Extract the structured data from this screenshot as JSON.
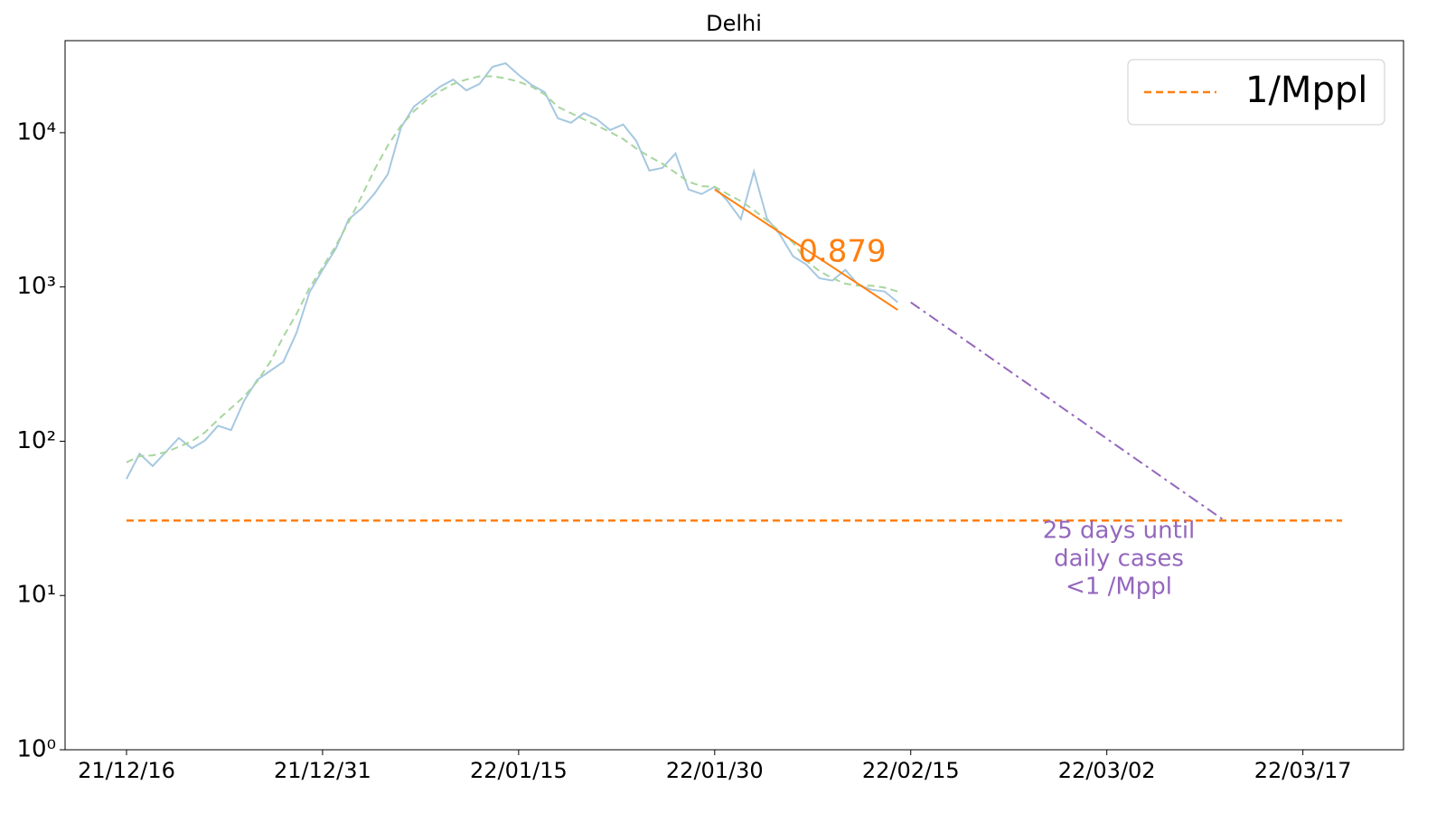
{
  "chart_data": {
    "type": "line",
    "title": "Delhi",
    "log_y": true,
    "xlim": [
      -4.7,
      97.7
    ],
    "ylim": [
      1,
      39500
    ],
    "xticks": [
      {
        "value": 0,
        "label": "21/12/16"
      },
      {
        "value": 15,
        "label": "21/12/31"
      },
      {
        "value": 30,
        "label": "22/01/15"
      },
      {
        "value": 45,
        "label": "22/01/30"
      },
      {
        "value": 60,
        "label": "22/02/15"
      },
      {
        "value": 75,
        "label": "22/03/02"
      },
      {
        "value": 90,
        "label": "22/03/17"
      }
    ],
    "yticks": [
      {
        "value": 1,
        "label": "10⁰"
      },
      {
        "value": 10,
        "label": "10¹"
      },
      {
        "value": 100,
        "label": "10²"
      },
      {
        "value": 1000,
        "label": "10³"
      },
      {
        "value": 10000,
        "label": "10⁴"
      }
    ],
    "legend": "upper right",
    "series": [
      {
        "color": "#a6c8e0",
        "style": "solid",
        "width": 2,
        "x": [
          0,
          1,
          2,
          3,
          4,
          5,
          6,
          7,
          8,
          9,
          10,
          11,
          12,
          13,
          14,
          15,
          16,
          17,
          18,
          19,
          20,
          21,
          22,
          23,
          24,
          25,
          26,
          27,
          28,
          29,
          30,
          31,
          32,
          33,
          34,
          35,
          36,
          37,
          38,
          39,
          40,
          41,
          42,
          43,
          44,
          45,
          46,
          47,
          48,
          49,
          50,
          51,
          52,
          53,
          54,
          55,
          56,
          57,
          58,
          59
        ],
        "values": [
          57,
          83,
          69,
          85,
          105,
          90,
          101,
          126,
          118,
          183,
          250,
          286,
          327,
          503,
          923,
          1290,
          1762,
          2750,
          3230,
          4060,
          5390,
          10800,
          14800,
          17100,
          19900,
          22100,
          18800,
          20700,
          26700,
          28200,
          23700,
          20400,
          18300,
          12400,
          11600,
          13400,
          12200,
          10400,
          11300,
          8850,
          5680,
          5910,
          7330,
          4280,
          4000,
          4460,
          3590,
          2750,
          5600,
          2780,
          2180,
          1580,
          1400,
          1140,
          1100,
          1290,
          1030,
          960,
          935,
          795
        ]
      },
      {
        "color": "#a8d5a0",
        "style": "dashed",
        "width": 2,
        "x": [
          0,
          1,
          2,
          3,
          4,
          5,
          6,
          7,
          8,
          9,
          10,
          11,
          12,
          13,
          14,
          15,
          16,
          17,
          18,
          19,
          20,
          21,
          22,
          23,
          24,
          25,
          26,
          27,
          28,
          29,
          30,
          31,
          32,
          33,
          34,
          35,
          36,
          37,
          38,
          39,
          40,
          41,
          42,
          43,
          44,
          45,
          46,
          47,
          48,
          49,
          50,
          51,
          52,
          53,
          54,
          55,
          56,
          57,
          58,
          59
        ],
        "values": [
          73,
          80,
          81,
          85,
          92,
          100,
          114,
          138,
          164,
          195,
          244,
          327,
          476,
          667,
          985,
          1340,
          1840,
          2640,
          3890,
          5810,
          8280,
          11100,
          13800,
          16400,
          18600,
          20700,
          22100,
          23200,
          23200,
          22500,
          21400,
          19900,
          17700,
          14700,
          13400,
          12200,
          11100,
          10100,
          9100,
          7900,
          7000,
          6300,
          5500,
          4800,
          4500,
          4460,
          4000,
          3600,
          3150,
          2700,
          2280,
          1940,
          1480,
          1270,
          1140,
          1050,
          1020,
          1020,
          990,
          935
        ]
      },
      {
        "color": "#ff7f0e",
        "style": "solid",
        "width": 2,
        "x": [
          45,
          59
        ],
        "values": [
          4280,
          710
        ]
      },
      {
        "color": "#9467bd",
        "style": "dashdot",
        "width": 2,
        "x": [
          60,
          84
        ],
        "values": [
          795,
          30.6
        ]
      },
      {
        "name": "1/Mppl",
        "color": "#ff7f0e",
        "style": "dashed",
        "width": 2.5,
        "x": [
          0,
          93
        ],
        "values": [
          30.6,
          30.6
        ]
      }
    ],
    "fit_label": "0.879",
    "projection_label": [
      "25 days until",
      "daily cases",
      "<1 /Mppl"
    ]
  }
}
